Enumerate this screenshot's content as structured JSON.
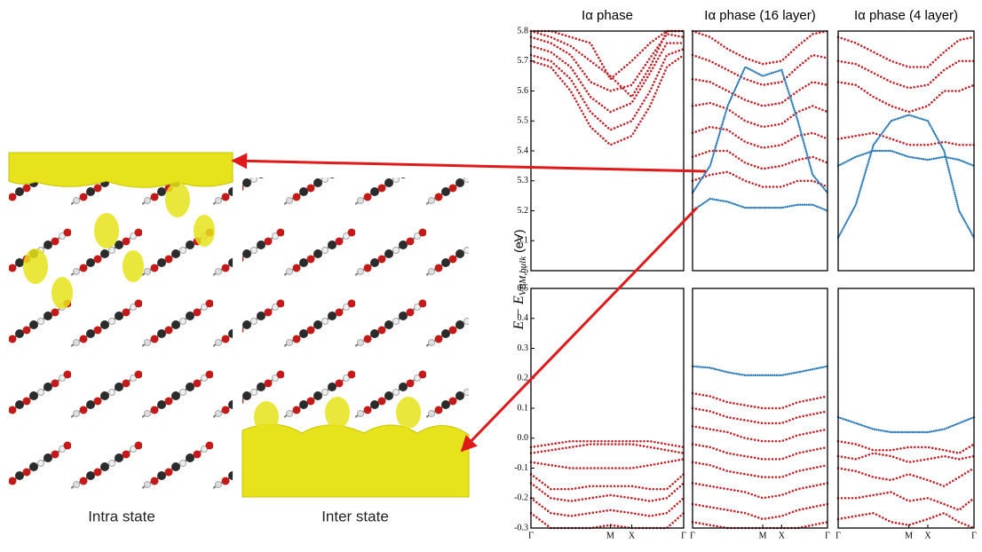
{
  "figure": {
    "ylabel": "E − E",
    "ylabel_sub": "VBM,bulk",
    "ylabel_unit": "(eV)",
    "images": [
      {
        "caption": "Intra state"
      },
      {
        "caption": "Inter state"
      }
    ]
  },
  "chart_data": [
    {
      "type": "band",
      "title": "Iα phase",
      "x": [
        0,
        0.13,
        0.26,
        0.39,
        0.52,
        0.66,
        0.78,
        0.89,
        1
      ],
      "xlim": [
        0,
        1
      ],
      "ylim": [
        5,
        5.8
      ],
      "yticks": [
        5,
        5.1,
        5.2,
        5.3,
        5.4,
        5.5,
        5.6,
        5.7,
        5.8
      ],
      "series": [
        {
          "color": "#c0262c",
          "values": [
            5.7,
            5.68,
            5.6,
            5.48,
            5.42,
            5.45,
            5.55,
            5.68,
            5.72
          ]
        },
        {
          "color": "#c0262c",
          "values": [
            5.72,
            5.7,
            5.64,
            5.53,
            5.47,
            5.5,
            5.6,
            5.72,
            5.74
          ]
        },
        {
          "color": "#c0262c",
          "values": [
            5.75,
            5.73,
            5.68,
            5.58,
            5.53,
            5.56,
            5.66,
            5.76,
            5.76
          ]
        },
        {
          "color": "#c0262c",
          "values": [
            5.78,
            5.76,
            5.72,
            5.63,
            5.6,
            5.62,
            5.71,
            5.79,
            5.78
          ]
        },
        {
          "color": "#c0262c",
          "values": [
            5.8,
            5.78,
            5.75,
            5.7,
            5.65,
            5.58,
            5.68,
            5.8,
            5.8
          ]
        },
        {
          "color": "#c0262c",
          "values": [
            5.8,
            5.8,
            5.78,
            5.76,
            5.64,
            5.7,
            5.76,
            5.8,
            5.8
          ]
        }
      ]
    },
    {
      "type": "band",
      "title": "Iα phase (16 layer)",
      "x": [
        0,
        0.13,
        0.26,
        0.39,
        0.52,
        0.66,
        0.78,
        0.89,
        1
      ],
      "xlim": [
        0,
        1
      ],
      "ylim": [
        5,
        5.8
      ],
      "series": [
        {
          "color": "#c0262c",
          "values": [
            5.3,
            5.32,
            5.33,
            5.3,
            5.28,
            5.28,
            5.3,
            5.3,
            5.28
          ]
        },
        {
          "color": "#c0262c",
          "values": [
            5.38,
            5.4,
            5.4,
            5.36,
            5.34,
            5.35,
            5.37,
            5.38,
            5.36
          ]
        },
        {
          "color": "#c0262c",
          "values": [
            5.46,
            5.48,
            5.47,
            5.43,
            5.41,
            5.42,
            5.45,
            5.46,
            5.44
          ]
        },
        {
          "color": "#c0262c",
          "values": [
            5.55,
            5.56,
            5.54,
            5.5,
            5.48,
            5.49,
            5.53,
            5.55,
            5.53
          ]
        },
        {
          "color": "#c0262c",
          "values": [
            5.64,
            5.63,
            5.6,
            5.57,
            5.55,
            5.56,
            5.6,
            5.63,
            5.62
          ]
        },
        {
          "color": "#c0262c",
          "values": [
            5.72,
            5.7,
            5.67,
            5.64,
            5.62,
            5.63,
            5.68,
            5.72,
            5.71
          ]
        },
        {
          "color": "#c0262c",
          "values": [
            5.8,
            5.78,
            5.74,
            5.71,
            5.69,
            5.7,
            5.75,
            5.79,
            5.8
          ]
        },
        {
          "color": "#2a7ab9",
          "values": [
            5.26,
            5.35,
            5.55,
            5.68,
            5.65,
            5.67,
            5.5,
            5.32,
            5.26
          ]
        },
        {
          "color": "#2a7ab9",
          "values": [
            5.2,
            5.24,
            5.23,
            5.21,
            5.21,
            5.21,
            5.22,
            5.22,
            5.2
          ]
        }
      ]
    },
    {
      "type": "band",
      "title": "Iα phase (4 layer)",
      "x": [
        0,
        0.13,
        0.26,
        0.39,
        0.52,
        0.66,
        0.78,
        0.89,
        1
      ],
      "xlim": [
        0,
        1
      ],
      "ylim": [
        5,
        5.8
      ],
      "series": [
        {
          "color": "#c0262c",
          "values": [
            5.44,
            5.45,
            5.46,
            5.44,
            5.42,
            5.42,
            5.43,
            5.42,
            5.42
          ]
        },
        {
          "color": "#c0262c",
          "values": [
            5.63,
            5.62,
            5.58,
            5.55,
            5.53,
            5.55,
            5.6,
            5.6,
            5.62
          ]
        },
        {
          "color": "#c0262c",
          "values": [
            5.7,
            5.69,
            5.66,
            5.63,
            5.61,
            5.62,
            5.67,
            5.7,
            5.7
          ]
        },
        {
          "color": "#c0262c",
          "values": [
            5.78,
            5.76,
            5.73,
            5.7,
            5.68,
            5.68,
            5.73,
            5.77,
            5.78
          ]
        },
        {
          "color": "#2a7ab9",
          "values": [
            5.35,
            5.38,
            5.4,
            5.4,
            5.38,
            5.37,
            5.38,
            5.37,
            5.35
          ]
        },
        {
          "color": "#2a7ab9",
          "values": [
            5.11,
            5.22,
            5.42,
            5.5,
            5.52,
            5.5,
            5.4,
            5.2,
            5.11
          ]
        }
      ]
    },
    {
      "type": "band",
      "x": [
        0,
        0.13,
        0.26,
        0.39,
        0.52,
        0.66,
        0.78,
        0.89,
        1
      ],
      "xlim": [
        0,
        1
      ],
      "xticks": [
        {
          "value": 0,
          "label": "Γ"
        },
        {
          "value": 0.52,
          "label": "M"
        },
        {
          "value": 0.66,
          "label": "X"
        },
        {
          "value": 1,
          "label": "Γ"
        }
      ],
      "ylim": [
        -0.3,
        0.5
      ],
      "yticks": [
        -0.3,
        -0.2,
        -0.1,
        {
          "value": 0,
          "label": "0.0"
        },
        0.1,
        0.2,
        0.3,
        0.4,
        0.5
      ],
      "series": [
        {
          "color": "#c0262c",
          "values": [
            -0.03,
            -0.02,
            -0.01,
            -0.01,
            -0.01,
            -0.01,
            -0.01,
            -0.02,
            -0.03
          ]
        },
        {
          "color": "#c0262c",
          "values": [
            -0.05,
            -0.04,
            -0.03,
            -0.02,
            -0.02,
            -0.02,
            -0.03,
            -0.04,
            -0.05
          ]
        },
        {
          "color": "#c0262c",
          "values": [
            -0.08,
            -0.09,
            -0.1,
            -0.1,
            -0.1,
            -0.1,
            -0.09,
            -0.08,
            -0.07
          ]
        },
        {
          "color": "#c0262c",
          "values": [
            -0.12,
            -0.17,
            -0.17,
            -0.16,
            -0.16,
            -0.16,
            -0.17,
            -0.17,
            -0.12
          ]
        },
        {
          "color": "#c0262c",
          "values": [
            -0.15,
            -0.2,
            -0.21,
            -0.2,
            -0.19,
            -0.2,
            -0.21,
            -0.2,
            -0.15
          ]
        },
        {
          "color": "#c0262c",
          "values": [
            -0.2,
            -0.25,
            -0.26,
            -0.25,
            -0.24,
            -0.25,
            -0.26,
            -0.25,
            -0.2
          ]
        },
        {
          "color": "#c0262c",
          "values": [
            -0.25,
            -0.3,
            -0.3,
            -0.3,
            -0.29,
            -0.3,
            -0.3,
            -0.3,
            -0.25
          ]
        }
      ]
    },
    {
      "type": "band",
      "x": [
        0,
        0.13,
        0.26,
        0.39,
        0.52,
        0.66,
        0.78,
        0.89,
        1
      ],
      "xlim": [
        0,
        1
      ],
      "xticks": [
        {
          "value": 0,
          "label": "Γ"
        },
        {
          "value": 0.52,
          "label": "M"
        },
        {
          "value": 0.66,
          "label": "X"
        },
        {
          "value": 1,
          "label": "Γ"
        }
      ],
      "ylim": [
        -0.3,
        0.5
      ],
      "series": [
        {
          "color": "#c0262c",
          "values": [
            0.15,
            0.14,
            0.12,
            0.11,
            0.1,
            0.1,
            0.12,
            0.13,
            0.14
          ]
        },
        {
          "color": "#c0262c",
          "values": [
            0.1,
            0.09,
            0.07,
            0.06,
            0.05,
            0.05,
            0.07,
            0.08,
            0.09
          ]
        },
        {
          "color": "#c0262c",
          "values": [
            0.04,
            0.03,
            0.02,
            0,
            -0.01,
            -0.01,
            0.01,
            0.02,
            0.03
          ]
        },
        {
          "color": "#c0262c",
          "values": [
            -0.02,
            -0.03,
            -0.05,
            -0.06,
            -0.07,
            -0.07,
            -0.05,
            -0.04,
            -0.03
          ]
        },
        {
          "color": "#c0262c",
          "values": [
            -0.08,
            -0.09,
            -0.11,
            -0.12,
            -0.13,
            -0.13,
            -0.11,
            -0.1,
            -0.09
          ]
        },
        {
          "color": "#c0262c",
          "values": [
            -0.15,
            -0.16,
            -0.17,
            -0.18,
            -0.2,
            -0.19,
            -0.17,
            -0.16,
            -0.15
          ]
        },
        {
          "color": "#c0262c",
          "values": [
            -0.22,
            -0.23,
            -0.24,
            -0.25,
            -0.27,
            -0.26,
            -0.24,
            -0.23,
            -0.22
          ]
        },
        {
          "color": "#c0262c",
          "values": [
            -0.28,
            -0.29,
            -0.3,
            -0.3,
            -0.3,
            -0.3,
            -0.3,
            -0.29,
            -0.28
          ]
        },
        {
          "color": "#2a7ab9",
          "values": [
            0.24,
            0.235,
            0.22,
            0.21,
            0.21,
            0.21,
            0.22,
            0.23,
            0.24
          ]
        }
      ]
    },
    {
      "type": "band",
      "x": [
        0,
        0.13,
        0.26,
        0.39,
        0.52,
        0.66,
        0.78,
        0.89,
        1
      ],
      "xlim": [
        0,
        1
      ],
      "xticks": [
        {
          "value": 0,
          "label": "Γ"
        },
        {
          "value": 0.52,
          "label": "M"
        },
        {
          "value": 0.66,
          "label": "X"
        },
        {
          "value": 1,
          "label": "Γ"
        }
      ],
      "ylim": [
        -0.3,
        0.5
      ],
      "series": [
        {
          "color": "#c0262c",
          "values": [
            -0.01,
            -0.02,
            -0.04,
            -0.04,
            -0.03,
            -0.03,
            -0.04,
            -0.05,
            -0.02
          ]
        },
        {
          "color": "#c0262c",
          "values": [
            -0.06,
            -0.07,
            -0.05,
            -0.06,
            -0.08,
            -0.07,
            -0.06,
            -0.07,
            -0.06
          ]
        },
        {
          "color": "#c0262c",
          "values": [
            -0.1,
            -0.11,
            -0.13,
            -0.14,
            -0.12,
            -0.14,
            -0.16,
            -0.13,
            -0.1
          ]
        },
        {
          "color": "#c0262c",
          "values": [
            -0.2,
            -0.2,
            -0.19,
            -0.18,
            -0.21,
            -0.2,
            -0.22,
            -0.24,
            -0.2
          ]
        },
        {
          "color": "#c0262c",
          "values": [
            -0.27,
            -0.26,
            -0.25,
            -0.28,
            -0.29,
            -0.27,
            -0.25,
            -0.28,
            -0.3
          ]
        },
        {
          "color": "#2a7ab9",
          "values": [
            0.07,
            0.05,
            0.03,
            0.02,
            0.02,
            0.02,
            0.03,
            0.05,
            0.07
          ]
        }
      ]
    }
  ]
}
